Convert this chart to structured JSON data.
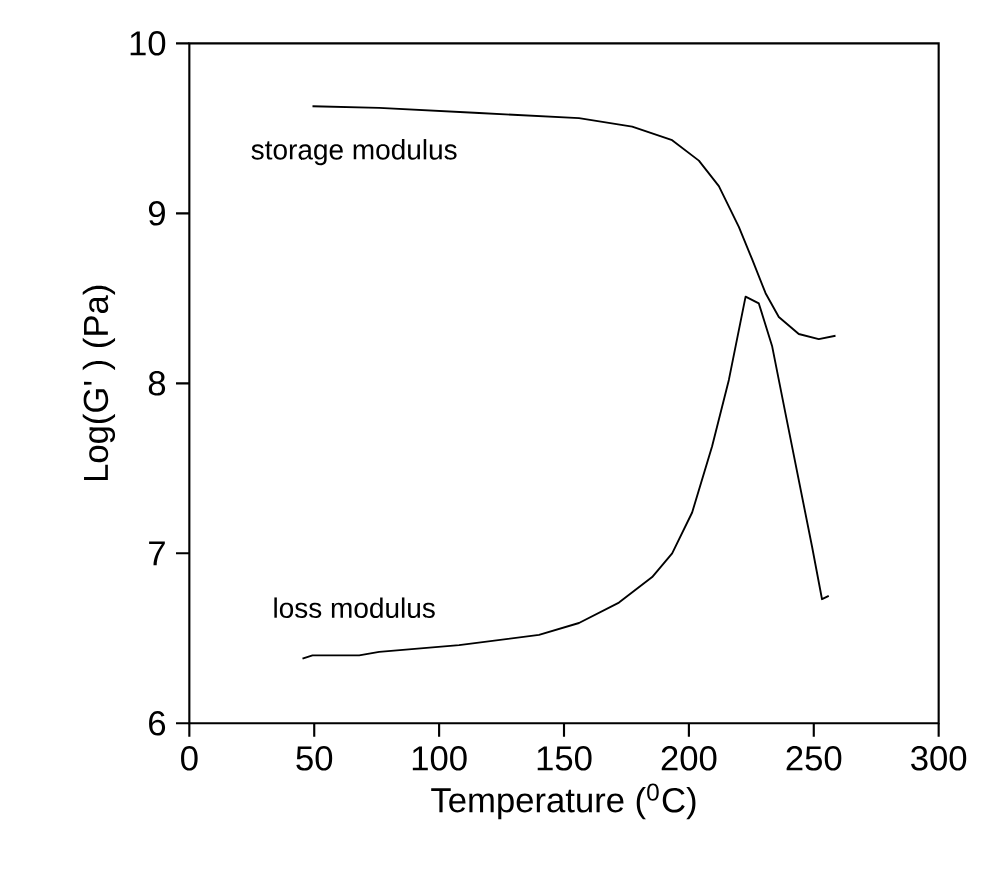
{
  "chart_data": {
    "type": "line",
    "xlabel": "Temperature ($^{0}$C)",
    "ylabel": "Log(G' ) (Pa)",
    "xlim": [
      0,
      300
    ],
    "ylim": [
      6,
      10
    ],
    "xticks": [
      0,
      50,
      100,
      150,
      200,
      250,
      300
    ],
    "yticks": [
      6,
      7,
      8,
      9,
      10
    ],
    "marker": "none",
    "line_style": "solid",
    "series": [
      {
        "name": "storage modulus",
        "color": "#000000",
        "x": [
          49.3,
          76,
          116,
          156,
          177.3,
          193.3,
          204,
          212,
          220,
          225.3,
          230.7,
          236,
          244,
          252,
          258.7
        ],
        "values": [
          9.63,
          9.62,
          9.59,
          9.56,
          9.51,
          9.43,
          9.31,
          9.16,
          8.92,
          8.73,
          8.53,
          8.39,
          8.29,
          8.26,
          8.28
        ]
      },
      {
        "name": "loss modulus",
        "color": "#000000",
        "x": [
          45.3,
          49.3,
          68,
          76,
          108,
          140,
          156,
          172,
          185.3,
          193.3,
          201.3,
          209.3,
          216,
          222.7,
          228,
          233.3,
          238.7,
          244,
          249.3,
          253.3,
          256
        ],
        "values": [
          6.38,
          6.4,
          6.4,
          6.42,
          6.46,
          6.52,
          6.59,
          6.71,
          6.86,
          7.0,
          7.24,
          7.63,
          8.02,
          8.51,
          8.47,
          8.22,
          7.82,
          7.43,
          7.04,
          6.73,
          6.75
        ]
      }
    ]
  }
}
